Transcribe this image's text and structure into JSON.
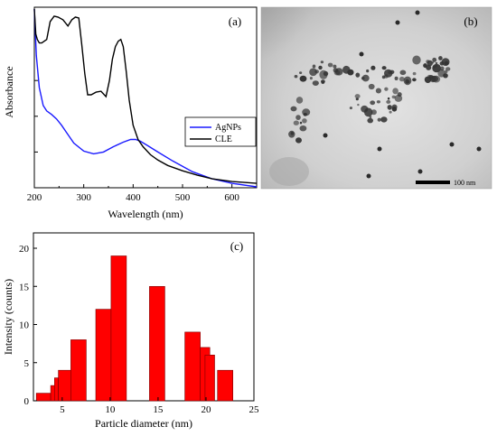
{
  "chart_data": [
    {
      "panel_label": "(a)",
      "type": "line",
      "xlabel": "Wavelength (nm)",
      "ylabel": "Absorbance",
      "xlim": [
        200,
        650
      ],
      "xticks": [
        200,
        300,
        400,
        500,
        600
      ],
      "legend_position": "middle-right",
      "series": [
        {
          "name": "AgNPs",
          "color": "#1a1aff",
          "x": [
            200,
            204,
            210,
            218,
            225,
            235,
            245,
            255,
            265,
            280,
            300,
            320,
            340,
            360,
            380,
            395,
            405,
            415,
            430,
            450,
            480,
            520,
            560,
            600,
            650
          ],
          "y": [
            1.02,
            0.74,
            0.56,
            0.46,
            0.43,
            0.41,
            0.385,
            0.35,
            0.31,
            0.25,
            0.205,
            0.19,
            0.2,
            0.23,
            0.255,
            0.27,
            0.27,
            0.26,
            0.235,
            0.2,
            0.15,
            0.09,
            0.05,
            0.025,
            0.005
          ]
        },
        {
          "name": "CLE",
          "color": "#000000",
          "x": [
            200,
            203,
            206,
            210,
            215,
            225,
            232,
            240,
            248,
            258,
            268,
            276,
            283,
            290,
            296,
            302,
            308,
            315,
            325,
            335,
            345,
            352,
            358,
            364,
            370,
            375,
            380,
            386,
            392,
            400,
            410,
            420,
            435,
            450,
            470,
            500,
            530,
            560,
            600,
            650
          ],
          "y": [
            1.02,
            0.86,
            0.83,
            0.81,
            0.81,
            0.83,
            0.93,
            0.96,
            0.955,
            0.94,
            0.905,
            0.94,
            0.955,
            0.95,
            0.8,
            0.64,
            0.52,
            0.52,
            0.535,
            0.54,
            0.51,
            0.6,
            0.72,
            0.79,
            0.82,
            0.83,
            0.79,
            0.65,
            0.49,
            0.35,
            0.27,
            0.23,
            0.185,
            0.155,
            0.125,
            0.095,
            0.07,
            0.05,
            0.035,
            0.025
          ]
        }
      ]
    },
    {
      "panel_label": "(b)",
      "type": "image",
      "scale_bar_label": "100 nm"
    },
    {
      "panel_label": "(c)",
      "type": "bar",
      "xlabel": "Particle diameter (nm)",
      "ylabel": "Intensity (counts)",
      "xlim": [
        2,
        25
      ],
      "ylim": [
        0,
        20
      ],
      "xticks": [
        5,
        10,
        15,
        20,
        25
      ],
      "yticks": [
        0,
        5,
        10,
        15,
        20
      ],
      "bar_color": "#ff0000",
      "bars": [
        {
          "start": 2.3,
          "end": 3.8,
          "value": 1
        },
        {
          "start": 3.8,
          "end": 4.2,
          "value": 2
        },
        {
          "start": 4.2,
          "end": 4.6,
          "value": 3
        },
        {
          "start": 4.6,
          "end": 5.9,
          "value": 4
        },
        {
          "start": 5.9,
          "end": 7.5,
          "value": 8
        },
        {
          "start": 8.5,
          "end": 10.1,
          "value": 12
        },
        {
          "start": 10.1,
          "end": 11.7,
          "value": 19
        },
        {
          "start": 14.1,
          "end": 15.7,
          "value": 15
        },
        {
          "start": 17.8,
          "end": 19.4,
          "value": 9
        },
        {
          "start": 19.4,
          "end": 20.4,
          "value": 7
        },
        {
          "start": 19.9,
          "end": 20.9,
          "value": 6
        },
        {
          "start": 21.2,
          "end": 22.8,
          "value": 4
        }
      ]
    }
  ]
}
